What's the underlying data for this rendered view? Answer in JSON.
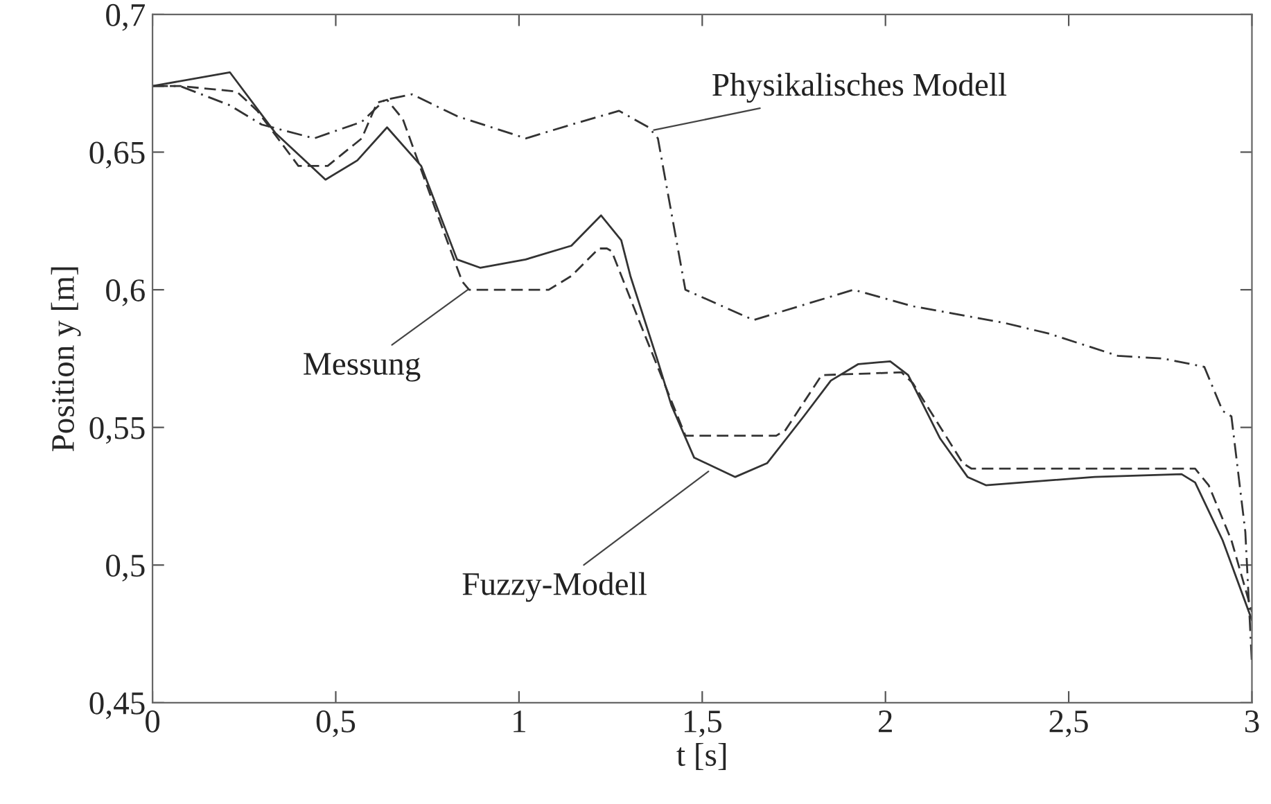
{
  "chart_data": {
    "type": "line",
    "xlabel": "t [s]",
    "ylabel": "Position y [m]",
    "xlim": [
      0,
      3
    ],
    "ylim": [
      0.45,
      0.7
    ],
    "xticks": [
      0,
      {
        "value": 0.5,
        "label": "0,5"
      },
      1,
      {
        "value": 1.5,
        "label": "1,5"
      },
      2,
      {
        "value": 2.5,
        "label": "2,5"
      },
      3
    ],
    "yticks": [
      {
        "value": 0.45,
        "label": "0,45"
      },
      {
        "value": 0.5,
        "label": "0,5"
      },
      {
        "value": 0.55,
        "label": "0,55"
      },
      {
        "value": 0.6,
        "label": "0,6"
      },
      {
        "value": 0.65,
        "label": "0,65"
      },
      {
        "value": 0.7,
        "label": "0,7"
      }
    ],
    "grid": false,
    "legend": false,
    "series": [
      {
        "color": "#333333",
        "line_style": "dashed",
        "x": [
          0,
          0.075,
          0.23,
          0.286,
          0.398,
          0.478,
          0.571,
          0.613,
          0.64,
          0.683,
          0.77,
          0.845,
          0.864,
          1.081,
          1.143,
          1.218,
          1.24,
          1.253,
          1.33,
          1.454,
          1.702,
          1.727,
          1.826,
          2.044,
          2.075,
          2.211,
          2.235,
          2.845,
          2.882,
          2.944,
          3.0
        ],
        "values": [
          0.674,
          0.674,
          0.672,
          0.665,
          0.645,
          0.645,
          0.655,
          0.668,
          0.669,
          0.662,
          0.63,
          0.603,
          0.6,
          0.6,
          0.605,
          0.615,
          0.615,
          0.614,
          0.588,
          0.547,
          0.547,
          0.549,
          0.569,
          0.57,
          0.566,
          0.537,
          0.535,
          0.535,
          0.529,
          0.509,
          0.483
        ]
      },
      {
        "color": "#333333",
        "line_style": "solid",
        "x": [
          0,
          0.211,
          0.335,
          0.472,
          0.559,
          0.64,
          0.733,
          0.831,
          0.894,
          1.018,
          1.143,
          1.224,
          1.279,
          1.304,
          1.379,
          1.416,
          1.478,
          1.59,
          1.677,
          1.777,
          1.851,
          1.926,
          2.013,
          2.062,
          2.149,
          2.224,
          2.274,
          2.571,
          2.808,
          2.845,
          2.92,
          3.0
        ],
        "values": [
          0.674,
          0.679,
          0.657,
          0.64,
          0.647,
          0.659,
          0.645,
          0.611,
          0.608,
          0.611,
          0.616,
          0.627,
          0.618,
          0.605,
          0.574,
          0.558,
          0.539,
          0.532,
          0.537,
          0.554,
          0.567,
          0.573,
          0.574,
          0.569,
          0.546,
          0.532,
          0.529,
          0.532,
          0.533,
          0.53,
          0.509,
          0.48
        ]
      },
      {
        "color": "#333333",
        "line_style": "dashdot",
        "x": [
          0,
          0.075,
          0.211,
          0.298,
          0.441,
          0.571,
          0.634,
          0.708,
          0.832,
          1.019,
          1.143,
          1.273,
          1.354,
          1.379,
          1.454,
          1.64,
          1.913,
          2.075,
          2.323,
          2.448,
          2.634,
          2.758,
          2.87,
          2.92,
          2.944,
          2.982,
          3.0
        ],
        "values": [
          0.674,
          0.674,
          0.667,
          0.66,
          0.655,
          0.661,
          0.669,
          0.671,
          0.663,
          0.655,
          0.66,
          0.665,
          0.659,
          0.655,
          0.6,
          0.589,
          0.6,
          0.594,
          0.588,
          0.584,
          0.576,
          0.575,
          0.572,
          0.556,
          0.554,
          0.512,
          0.464
        ]
      }
    ],
    "annotations": [
      {
        "text": "Physikalisches Modell",
        "x": 1.368,
        "y": 0.658
      },
      {
        "text": "Messung",
        "x": 0.86,
        "y": 0.6
      },
      {
        "text": "Fuzzy-Modell",
        "x": 1.517,
        "y": 0.534
      }
    ]
  }
}
